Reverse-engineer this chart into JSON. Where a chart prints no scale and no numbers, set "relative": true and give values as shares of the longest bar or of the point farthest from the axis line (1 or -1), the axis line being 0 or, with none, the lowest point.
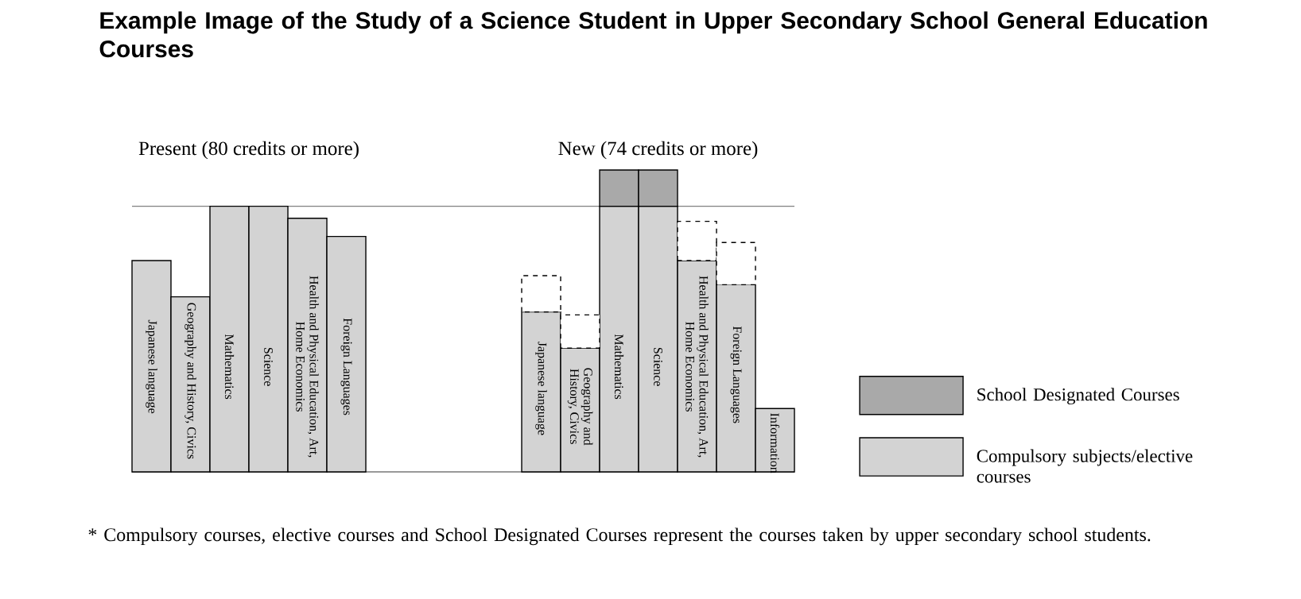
{
  "chart_data": {
    "type": "bar",
    "stacked": true,
    "relative": true,
    "title": "Example Image of the Study of a Science Student in Upper Secondary School General Education Courses",
    "annotations": [
      "Present (80 credits or more)",
      "New (74 credits or more)",
      "* Compulsory courses, elective courses and School Designated Courses represent the courses taken by upper secondary school students."
    ],
    "categories": [
      "Japanese language",
      "Geography and History, Civics",
      "Mathematics",
      "Science",
      "Health and Physical Education, Art, Home Economics",
      "Foreign Languages",
      null,
      null,
      null,
      null,
      "Japanese language",
      "Geography and History, Civics",
      "Mathematics",
      "Science",
      "Health and Physical Education, Art, Home Economics",
      "Foreign Languages",
      "Information"
    ],
    "series": [
      {
        "name": "Compulsory subjects/elective courses",
        "color": "#d3d3d3",
        "values": [
          0.7,
          0.58,
          0.88,
          0.88,
          0.84,
          0.78,
          null,
          null,
          null,
          null,
          0.53,
          0.41,
          0.88,
          0.88,
          0.7,
          0.62,
          0.21
        ]
      },
      {
        "name": "School Designated Courses",
        "color": "#a9a9a9",
        "values": [
          null,
          null,
          null,
          null,
          null,
          null,
          null,
          null,
          null,
          null,
          null,
          null,
          0.12,
          0.12,
          null,
          null,
          null
        ]
      },
      {
        "color": "#ffffff",
        "line_style": "dashed",
        "values": [
          null,
          null,
          null,
          null,
          null,
          null,
          null,
          null,
          null,
          null,
          0.12,
          0.11,
          null,
          null,
          0.13,
          0.14,
          null
        ]
      }
    ],
    "ref_lines": [
      {
        "axis": "y",
        "value": 0.88,
        "color": "#808080"
      }
    ],
    "legend": "right"
  }
}
